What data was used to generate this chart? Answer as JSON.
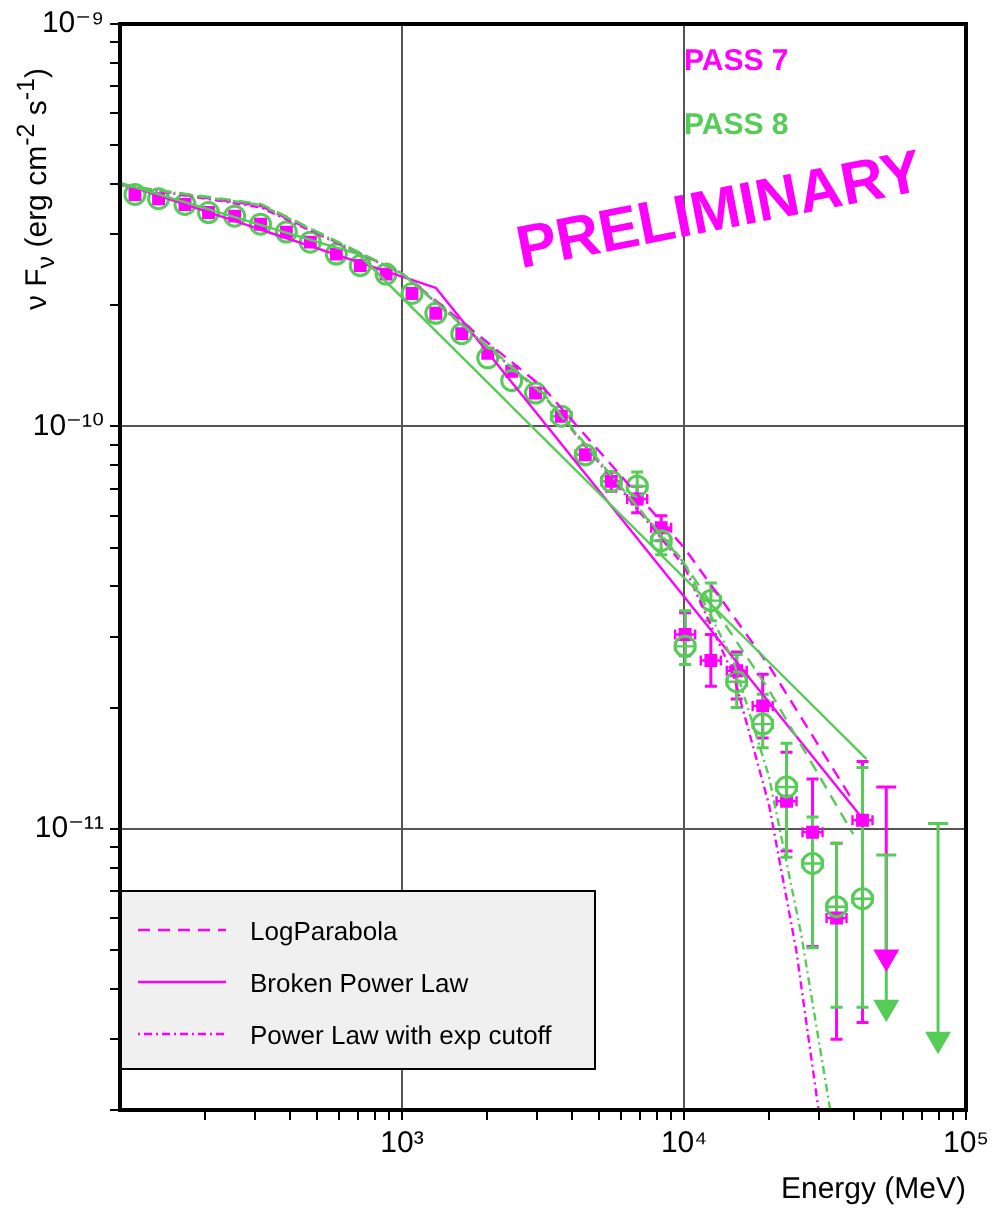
{
  "chart_data": {
    "type": "scatter",
    "xlabel": "Energy (MeV)",
    "ylabel": "ν F$_{ν}$ (erg cm$^{-2}$ s$^{-1}$)",
    "log": "xy",
    "xlim": [
      100,
      100000
    ],
    "ylim": [
      2e-12,
      1e-09
    ],
    "xticks": [
      {
        "value": 200,
        "label": null
      },
      {
        "value": 300,
        "label": null
      },
      {
        "value": 400,
        "label": null
      },
      {
        "value": 500,
        "label": null
      },
      {
        "value": 600,
        "label": null
      },
      {
        "value": 700,
        "label": null
      },
      {
        "value": 800,
        "label": null
      },
      {
        "value": 900,
        "label": null
      },
      {
        "value": 1000,
        "label": "10³"
      },
      {
        "value": 2000,
        "label": null
      },
      {
        "value": 3000,
        "label": null
      },
      {
        "value": 4000,
        "label": null
      },
      {
        "value": 5000,
        "label": null
      },
      {
        "value": 6000,
        "label": null
      },
      {
        "value": 7000,
        "label": null
      },
      {
        "value": 8000,
        "label": null
      },
      {
        "value": 9000,
        "label": null
      },
      {
        "value": 10000,
        "label": "10⁴"
      },
      {
        "value": 20000,
        "label": null
      },
      {
        "value": 30000,
        "label": null
      },
      {
        "value": 40000,
        "label": null
      },
      {
        "value": 50000,
        "label": null
      },
      {
        "value": 60000,
        "label": null
      },
      {
        "value": 70000,
        "label": null
      },
      {
        "value": 80000,
        "label": null
      },
      {
        "value": 90000,
        "label": null
      },
      {
        "value": 100000,
        "label": "10⁵"
      }
    ],
    "yticks": [
      {
        "value": 2e-12,
        "label": null
      },
      {
        "value": 3e-12,
        "label": null
      },
      {
        "value": 4e-12,
        "label": null
      },
      {
        "value": 5e-12,
        "label": null
      },
      {
        "value": 6e-12,
        "label": null
      },
      {
        "value": 7e-12,
        "label": null
      },
      {
        "value": 8e-12,
        "label": null
      },
      {
        "value": 9e-12,
        "label": null
      },
      {
        "value": 1e-11,
        "label": "10⁻¹¹"
      },
      {
        "value": 2e-11,
        "label": null
      },
      {
        "value": 3e-11,
        "label": null
      },
      {
        "value": 4e-11,
        "label": null
      },
      {
        "value": 5e-11,
        "label": null
      },
      {
        "value": 6e-11,
        "label": null
      },
      {
        "value": 7e-11,
        "label": null
      },
      {
        "value": 8e-11,
        "label": null
      },
      {
        "value": 9e-11,
        "label": null
      },
      {
        "value": 1e-10,
        "label": "10⁻¹⁰"
      },
      {
        "value": 2e-10,
        "label": null
      },
      {
        "value": 3e-10,
        "label": null
      },
      {
        "value": 4e-10,
        "label": null
      },
      {
        "value": 5e-10,
        "label": null
      },
      {
        "value": 6e-10,
        "label": null
      },
      {
        "value": 7e-10,
        "label": null
      },
      {
        "value": 8e-10,
        "label": null
      },
      {
        "value": 9e-10,
        "label": null
      },
      {
        "value": 1e-09,
        "label": "10⁻⁹"
      }
    ],
    "grid": true,
    "legend": "bottom left",
    "annotations": [
      "PRELIMINARY"
    ],
    "series": [
      {
        "name": "PASS 7",
        "type": "scatter",
        "marker": "square",
        "color": "#ff00ff",
        "x": [
          113,
          137,
          170,
          206,
          255,
          315,
          389,
          473,
          585,
          711,
          878,
          1085,
          1318,
          1629,
          2014,
          2449,
          2974,
          3673,
          4467,
          5521,
          6823,
          8299,
          10090,
          12450,
          15380,
          19010,
          23100,
          28560,
          34750,
          42950
        ],
        "values": [
          3.77e-10,
          3.68e-10,
          3.56e-10,
          3.4e-10,
          3.33e-10,
          3.18e-10,
          3.04e-10,
          2.87e-10,
          2.68e-10,
          2.51e-10,
          2.39e-10,
          2.14e-10,
          1.91e-10,
          1.7e-10,
          1.52e-10,
          1.37e-10,
          1.21e-10,
          1.06e-10,
          8.5e-11,
          7.3e-11,
          6.6e-11,
          5.6e-11,
          3.04e-11,
          2.62e-11,
          2.47e-11,
          2.02e-11,
          1.17e-11,
          9.8e-12,
          6e-12,
          1.05e-11
        ],
        "errors": [
          null,
          null,
          null,
          null,
          null,
          null,
          null,
          null,
          null,
          null,
          null,
          null,
          null,
          null,
          null,
          null,
          null,
          null,
          null,
          [
            6.9e-11,
            7.7e-11
          ],
          [
            6.1e-11,
            7.1e-11
          ],
          [
            5.2e-11,
            6e-11
          ],
          [
            2.69e-11,
            3.44e-11
          ],
          [
            2.26e-11,
            3.04e-11
          ],
          [
            2.1e-11,
            2.75e-11
          ],
          [
            1.68e-11,
            2.42e-11
          ],
          [
            8.8e-12,
            1.55e-11
          ],
          [
            5.1e-12,
            1.33e-11
          ],
          [
            3e-12,
            9.2e-12
          ],
          [
            3.3e-12,
            1.47e-11
          ]
        ],
        "xerrors": [
          null,
          null,
          null,
          null,
          null,
          null,
          null,
          null,
          null,
          null,
          null,
          null,
          null,
          null,
          null,
          null,
          null,
          [
            3385,
            3985
          ],
          [
            4117,
            4847
          ],
          [
            5088,
            5990
          ],
          [
            6288,
            7403
          ],
          [
            7649,
            9004
          ],
          [
            9300,
            10950
          ],
          [
            11470,
            13510
          ],
          [
            14180,
            16690
          ],
          [
            17520,
            20630
          ],
          [
            21290,
            25060
          ],
          [
            26320,
            30990
          ],
          [
            32030,
            37700
          ],
          [
            39580,
            46600
          ]
        ]
      },
      {
        "name": "PASS 8",
        "type": "scatter",
        "marker": "circle",
        "color": "#55cc55",
        "x": [
          113,
          137,
          170,
          206,
          255,
          315,
          389,
          473,
          585,
          711,
          878,
          1085,
          1318,
          1629,
          2014,
          2449,
          2974,
          3673,
          4467,
          5521,
          6823,
          8299,
          10090,
          12450,
          15380,
          19010,
          23100,
          28560,
          34750,
          42950
        ],
        "values": [
          3.77e-10,
          3.68e-10,
          3.56e-10,
          3.4e-10,
          3.33e-10,
          3.18e-10,
          3.04e-10,
          2.87e-10,
          2.68e-10,
          2.51e-10,
          2.39e-10,
          2.14e-10,
          1.91e-10,
          1.7e-10,
          1.48e-10,
          1.3e-10,
          1.21e-10,
          1.06e-10,
          8.5e-11,
          7.3e-11,
          7.1e-11,
          5.2e-11,
          2.84e-11,
          3.69e-11,
          2.32e-11,
          1.82e-11,
          1.27e-11,
          8.2e-12,
          6.4e-12,
          6.7e-12
        ],
        "errors": [
          null,
          null,
          null,
          null,
          null,
          null,
          null,
          null,
          null,
          null,
          null,
          null,
          null,
          null,
          null,
          null,
          null,
          null,
          null,
          null,
          [
            6.6e-11,
            7.7e-11
          ],
          [
            4.8e-11,
            5.6e-11
          ],
          [
            2.56e-11,
            3.48e-11
          ],
          [
            3.29e-11,
            4.08e-11
          ],
          [
            2e-11,
            2.71e-11
          ],
          [
            1.59e-11,
            2.16e-11
          ],
          [
            8.5e-12,
            1.63e-11
          ],
          [
            5.06e-12,
            1.07e-11
          ],
          [
            3.6e-12,
            9.2e-12
          ],
          [
            3.6e-12,
            1.42e-11
          ]
        ],
        "xerrors": [
          null,
          null,
          null,
          null,
          null,
          null,
          null,
          null,
          null,
          null,
          null,
          null,
          null,
          null,
          null,
          null,
          null,
          [
            3385,
            3985
          ],
          [
            4117,
            4847
          ],
          [
            5088,
            5990
          ],
          [
            6288,
            7403
          ],
          [
            7649,
            9004
          ],
          [
            9300,
            10950
          ],
          [
            11470,
            13510
          ],
          [
            14180,
            16690
          ],
          [
            17520,
            20630
          ],
          [
            21290,
            25060
          ],
          [
            26320,
            30990
          ],
          [
            32030,
            37700
          ],
          [
            39580,
            46600
          ]
        ]
      },
      {
        "type": "scatter",
        "marker": "triangle",
        "color": "#ff00ff",
        "x": [
          52150
        ],
        "values": [
          4.8e-12
        ],
        "errors": [
          [
            4.8e-12,
            1.27e-11
          ]
        ]
      },
      {
        "type": "scatter",
        "marker": "triangle",
        "color": "#55cc55",
        "x": [
          52150,
          79600
        ],
        "values": [
          3.6e-12,
          3e-12
        ],
        "errors": [
          [
            3.6e-12,
            8.6e-12
          ],
          [
            3e-12,
            1.03e-11
          ]
        ]
      },
      {
        "name": "LogParabola",
        "type": "line",
        "line_style": "dashed",
        "color": "#ff00ff",
        "x": [
          100,
          316,
          1000,
          3162,
          10000,
          19953,
          39811
        ],
        "values": [
          3.98e-10,
          3.53e-10,
          2.4e-10,
          1.25e-10,
          5e-11,
          2.55e-11,
          1.17e-11
        ]
      },
      {
        "name": "Broken Power Law",
        "type": "line",
        "line_style": "solid",
        "color": "#ff00ff",
        "x": [
          100,
          1318,
          42950
        ],
        "values": [
          4.03e-10,
          2.21e-10,
          1.06e-11
        ]
      },
      {
        "name": "Power Law with exp cutoff",
        "type": "line",
        "line_style": "dotted",
        "color": "#ff00ff",
        "x": [
          100,
          316,
          1000,
          3162,
          10000,
          15000,
          20000,
          25000,
          30000
        ],
        "values": [
          3.98e-10,
          3.5e-10,
          2.4e-10,
          1.2e-10,
          4.5e-11,
          2.4e-11,
          1.15e-11,
          5e-12,
          2e-12
        ]
      },
      {
        "type": "line",
        "line_style": "dashed",
        "color": "#55cc55",
        "x": [
          100,
          316,
          1000,
          3162,
          10000,
          19953,
          39811
        ],
        "values": [
          3.98e-10,
          3.57e-10,
          2.4e-10,
          1.21e-10,
          4.57e-11,
          2.22e-11,
          9.7e-12
        ]
      },
      {
        "type": "line",
        "line_style": "solid",
        "color": "#55cc55",
        "x": [
          100,
          700,
          44400
        ],
        "values": [
          4.03e-10,
          2.68e-10,
          1.49e-11
        ]
      },
      {
        "type": "line",
        "line_style": "dotted",
        "color": "#55cc55",
        "x": [
          100,
          316,
          1000,
          3162,
          10000,
          15000,
          20000,
          26000,
          33000
        ],
        "values": [
          3.98e-10,
          3.55e-10,
          2.4e-10,
          1.2e-10,
          4.6e-11,
          2.6e-11,
          1.35e-11,
          5.5e-12,
          2e-12
        ]
      }
    ]
  }
}
